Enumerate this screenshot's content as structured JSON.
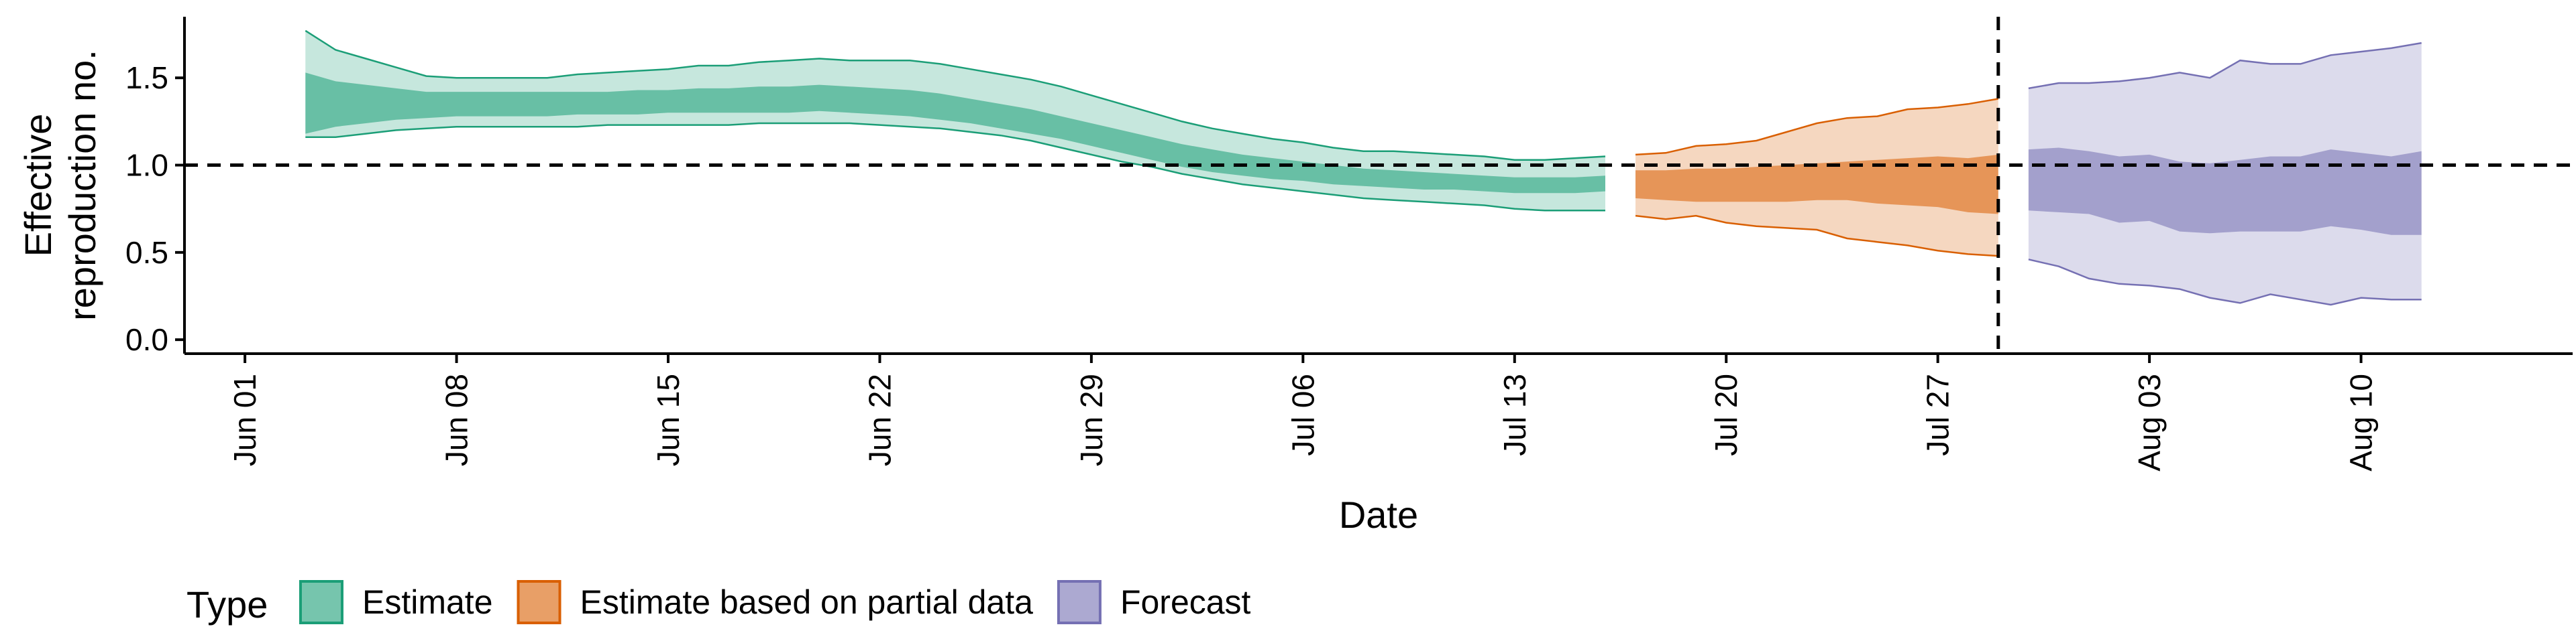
{
  "chart_data": {
    "type": "area",
    "xlabel": "Date",
    "ylabel_lines": [
      "Effective",
      "reproduction no."
    ],
    "x_ticks": [
      {
        "date": "2020-06-01",
        "label": "Jun 01"
      },
      {
        "date": "2020-06-08",
        "label": "Jun 08"
      },
      {
        "date": "2020-06-15",
        "label": "Jun 15"
      },
      {
        "date": "2020-06-22",
        "label": "Jun 22"
      },
      {
        "date": "2020-06-29",
        "label": "Jun 29"
      },
      {
        "date": "2020-07-06",
        "label": "Jul 06"
      },
      {
        "date": "2020-07-13",
        "label": "Jul 13"
      },
      {
        "date": "2020-07-20",
        "label": "Jul 20"
      },
      {
        "date": "2020-07-27",
        "label": "Jul 27"
      },
      {
        "date": "2020-08-03",
        "label": "Aug 03"
      },
      {
        "date": "2020-08-10",
        "label": "Aug 10"
      }
    ],
    "y_ticks": [
      {
        "value": 0.0,
        "label": "0.0"
      },
      {
        "value": 0.5,
        "label": "0.5"
      },
      {
        "value": 1.0,
        "label": "1.0"
      },
      {
        "value": 1.5,
        "label": "1.5"
      }
    ],
    "xlim": [
      "2020-05-30",
      "2020-08-17"
    ],
    "ylim": [
      -0.08,
      1.85
    ],
    "reference_line_y": 1.0,
    "forecast_start_line": "2020-07-29",
    "legend_title": "Type",
    "legend_position": "bottom-left",
    "series": [
      {
        "name": "Estimate",
        "fill_color": "#1b9e77",
        "x": [
          "2020-06-03",
          "2020-06-04",
          "2020-06-05",
          "2020-06-06",
          "2020-06-07",
          "2020-06-08",
          "2020-06-09",
          "2020-06-10",
          "2020-06-11",
          "2020-06-12",
          "2020-06-13",
          "2020-06-14",
          "2020-06-15",
          "2020-06-16",
          "2020-06-17",
          "2020-06-18",
          "2020-06-19",
          "2020-06-20",
          "2020-06-21",
          "2020-06-22",
          "2020-06-23",
          "2020-06-24",
          "2020-06-25",
          "2020-06-26",
          "2020-06-27",
          "2020-06-28",
          "2020-06-29",
          "2020-06-30",
          "2020-07-01",
          "2020-07-02",
          "2020-07-03",
          "2020-07-04",
          "2020-07-05",
          "2020-07-06",
          "2020-07-07",
          "2020-07-08",
          "2020-07-09",
          "2020-07-10",
          "2020-07-11",
          "2020-07-12",
          "2020-07-13",
          "2020-07-14",
          "2020-07-15",
          "2020-07-16"
        ],
        "upper_90": [
          1.77,
          1.66,
          1.61,
          1.56,
          1.51,
          1.5,
          1.5,
          1.5,
          1.5,
          1.52,
          1.53,
          1.54,
          1.55,
          1.57,
          1.57,
          1.59,
          1.6,
          1.61,
          1.6,
          1.6,
          1.6,
          1.58,
          1.55,
          1.52,
          1.49,
          1.45,
          1.4,
          1.35,
          1.3,
          1.25,
          1.21,
          1.18,
          1.15,
          1.13,
          1.1,
          1.08,
          1.08,
          1.07,
          1.06,
          1.05,
          1.03,
          1.03,
          1.04,
          1.05
        ],
        "upper_50": [
          1.53,
          1.48,
          1.46,
          1.44,
          1.42,
          1.42,
          1.42,
          1.42,
          1.42,
          1.42,
          1.42,
          1.43,
          1.43,
          1.44,
          1.44,
          1.45,
          1.45,
          1.46,
          1.45,
          1.44,
          1.43,
          1.41,
          1.38,
          1.35,
          1.32,
          1.28,
          1.24,
          1.2,
          1.16,
          1.12,
          1.09,
          1.06,
          1.04,
          1.02,
          1.0,
          0.98,
          0.97,
          0.96,
          0.95,
          0.94,
          0.93,
          0.93,
          0.93,
          0.94
        ],
        "lower_50": [
          1.18,
          1.22,
          1.24,
          1.26,
          1.27,
          1.28,
          1.28,
          1.28,
          1.28,
          1.29,
          1.29,
          1.29,
          1.3,
          1.3,
          1.3,
          1.3,
          1.3,
          1.31,
          1.3,
          1.29,
          1.28,
          1.26,
          1.24,
          1.21,
          1.18,
          1.15,
          1.11,
          1.07,
          1.03,
          0.99,
          0.96,
          0.94,
          0.92,
          0.91,
          0.89,
          0.88,
          0.87,
          0.86,
          0.86,
          0.85,
          0.84,
          0.84,
          0.84,
          0.85
        ],
        "lower_90": [
          1.16,
          1.16,
          1.18,
          1.2,
          1.21,
          1.22,
          1.22,
          1.22,
          1.22,
          1.22,
          1.23,
          1.23,
          1.23,
          1.23,
          1.23,
          1.24,
          1.24,
          1.24,
          1.24,
          1.23,
          1.22,
          1.21,
          1.19,
          1.17,
          1.14,
          1.1,
          1.06,
          1.02,
          0.99,
          0.95,
          0.92,
          0.89,
          0.87,
          0.85,
          0.83,
          0.81,
          0.8,
          0.79,
          0.78,
          0.77,
          0.75,
          0.74,
          0.74,
          0.74
        ]
      },
      {
        "name": "Estimate based on partial data",
        "fill_color": "#d95f02",
        "x": [
          "2020-07-17",
          "2020-07-18",
          "2020-07-19",
          "2020-07-20",
          "2020-07-21",
          "2020-07-22",
          "2020-07-23",
          "2020-07-24",
          "2020-07-25",
          "2020-07-26",
          "2020-07-27",
          "2020-07-28",
          "2020-07-29"
        ],
        "upper_90": [
          1.06,
          1.07,
          1.11,
          1.12,
          1.14,
          1.19,
          1.24,
          1.27,
          1.28,
          1.32,
          1.33,
          1.35,
          1.38
        ],
        "upper_50": [
          0.97,
          0.97,
          0.98,
          0.98,
          0.99,
          1.0,
          1.01,
          1.02,
          1.03,
          1.04,
          1.05,
          1.04,
          1.06
        ],
        "lower_50": [
          0.81,
          0.8,
          0.79,
          0.79,
          0.79,
          0.79,
          0.8,
          0.8,
          0.78,
          0.77,
          0.76,
          0.73,
          0.72
        ],
        "lower_90": [
          0.71,
          0.69,
          0.71,
          0.67,
          0.65,
          0.64,
          0.63,
          0.58,
          0.56,
          0.54,
          0.51,
          0.49,
          0.48
        ]
      },
      {
        "name": "Forecast",
        "fill_color": "#7570b3",
        "x": [
          "2020-07-30",
          "2020-07-31",
          "2020-08-01",
          "2020-08-02",
          "2020-08-03",
          "2020-08-04",
          "2020-08-05",
          "2020-08-06",
          "2020-08-07",
          "2020-08-08",
          "2020-08-09",
          "2020-08-10",
          "2020-08-11",
          "2020-08-12"
        ],
        "upper_90": [
          1.44,
          1.47,
          1.47,
          1.48,
          1.5,
          1.53,
          1.5,
          1.6,
          1.58,
          1.58,
          1.63,
          1.65,
          1.67,
          1.7
        ],
        "upper_50": [
          1.09,
          1.1,
          1.08,
          1.05,
          1.06,
          1.02,
          1.01,
          1.03,
          1.05,
          1.05,
          1.09,
          1.07,
          1.05,
          1.08
        ],
        "lower_50": [
          0.74,
          0.73,
          0.72,
          0.67,
          0.68,
          0.62,
          0.61,
          0.62,
          0.62,
          0.62,
          0.65,
          0.63,
          0.6,
          0.6
        ],
        "lower_90": [
          0.46,
          0.42,
          0.35,
          0.32,
          0.31,
          0.29,
          0.24,
          0.21,
          0.26,
          0.23,
          0.2,
          0.24,
          0.23,
          0.23
        ]
      }
    ]
  }
}
